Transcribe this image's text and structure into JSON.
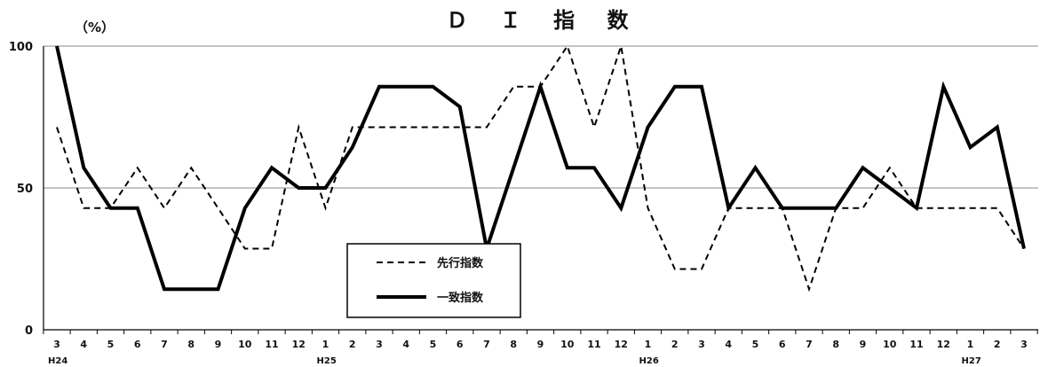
{
  "chart_data": {
    "type": "line",
    "title": "Ｄ Ｉ 指 数",
    "unit_label": "（%）",
    "ylim": [
      0,
      100
    ],
    "y_ticks": [
      "0",
      "50",
      "100"
    ],
    "grid": "horizontal line at 50",
    "legend_position": "bottom-center",
    "categories": [
      "3",
      "4",
      "5",
      "6",
      "7",
      "8",
      "9",
      "10",
      "11",
      "12",
      "1",
      "2",
      "3",
      "4",
      "5",
      "6",
      "7",
      "8",
      "9",
      "10",
      "11",
      "12",
      "1",
      "2",
      "3",
      "4",
      "5",
      "6",
      "7",
      "8",
      "9",
      "10",
      "11",
      "12",
      "1",
      "2",
      "3"
    ],
    "eras": [
      {
        "label": "H24",
        "index": 0
      },
      {
        "label": "H25",
        "index": 10
      },
      {
        "label": "H26",
        "index": 22
      },
      {
        "label": "H27",
        "index": 34
      }
    ],
    "series": [
      {
        "name": "先行指数",
        "style": "dashed",
        "color": "#000000",
        "values": [
          71.4,
          42.9,
          42.9,
          57.1,
          42.9,
          57.1,
          42.9,
          28.6,
          28.6,
          71.4,
          42.9,
          71.4,
          71.4,
          71.4,
          71.4,
          71.4,
          71.4,
          85.7,
          85.7,
          100,
          71.4,
          100,
          42.9,
          21.4,
          21.4,
          42.9,
          42.9,
          42.9,
          14.3,
          42.9,
          42.9,
          57.1,
          42.9,
          42.9,
          42.9,
          42.9,
          28.6
        ]
      },
      {
        "name": "一致指数",
        "style": "solid",
        "color": "#000000",
        "values": [
          100,
          57.1,
          42.9,
          42.9,
          14.3,
          14.3,
          14.3,
          42.9,
          57.1,
          50,
          50,
          64.3,
          85.7,
          85.7,
          85.7,
          78.6,
          28.6,
          57.1,
          85.7,
          57.1,
          57.1,
          42.9,
          71.4,
          85.7,
          85.7,
          42.9,
          57.1,
          42.9,
          42.9,
          42.9,
          57.1,
          50,
          42.9,
          85.7,
          64.3,
          71.4,
          28.6
        ]
      }
    ]
  }
}
